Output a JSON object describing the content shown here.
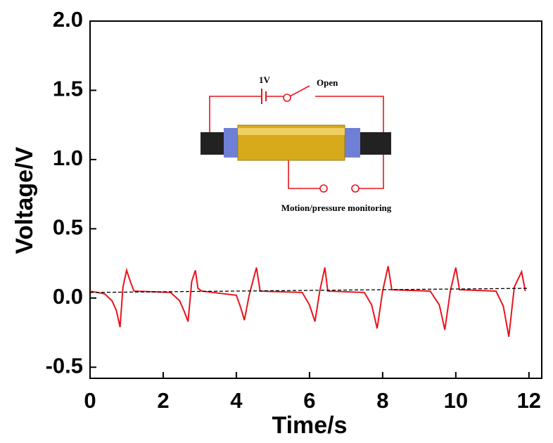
{
  "chart_data": {
    "type": "line",
    "x_label": "Time/s",
    "y_label": "Voltage/V",
    "xlim": [
      0,
      12.35
    ],
    "ylim": [
      -0.58,
      2.0
    ],
    "xticks": [
      0,
      2,
      4,
      6,
      8,
      10,
      12
    ],
    "yticks": [
      {
        "value": 2.0,
        "label": "2.0"
      },
      {
        "value": 1.5,
        "label": "1.5"
      },
      {
        "value": 1.0,
        "label": "1.0"
      },
      {
        "value": 0.5,
        "label": "0.5"
      },
      {
        "value": 0.0,
        "label": "0.0"
      },
      {
        "value": -0.5,
        "label": "-0.5"
      }
    ],
    "series": [
      {
        "color": "#e8141c",
        "x": [
          0,
          0.4,
          0.6,
          0.72,
          0.82,
          0.9,
          1.0,
          1.1,
          1.2,
          2.2,
          2.45,
          2.58,
          2.68,
          2.78,
          2.88,
          2.95,
          3.05,
          4.0,
          4.12,
          4.22,
          4.35,
          4.55,
          4.65,
          5.8,
          6.0,
          6.15,
          6.28,
          6.42,
          6.5,
          7.5,
          7.7,
          7.85,
          8.0,
          8.15,
          8.25,
          9.3,
          9.55,
          9.7,
          9.85,
          10.0,
          10.1,
          11.1,
          11.3,
          11.45,
          11.6,
          11.8,
          11.9
        ],
        "values": [
          0.05,
          0.03,
          -0.02,
          -0.09,
          -0.21,
          0.08,
          0.2,
          0.12,
          0.05,
          0.04,
          -0.02,
          -0.1,
          -0.17,
          0.12,
          0.2,
          0.07,
          0.05,
          0.02,
          -0.07,
          -0.16,
          0.02,
          0.22,
          0.05,
          0.04,
          -0.05,
          -0.17,
          0.05,
          0.22,
          0.05,
          0.04,
          -0.05,
          -0.22,
          0.05,
          0.23,
          0.06,
          0.05,
          -0.05,
          -0.23,
          0.05,
          0.22,
          0.06,
          0.05,
          -0.06,
          -0.28,
          0.08,
          0.19,
          0.05
        ]
      },
      {
        "color": "#000000",
        "dash": "5,3",
        "x": [
          0,
          12
        ],
        "values": [
          0.04,
          0.07
        ]
      }
    ],
    "inset": {
      "battery": "1V",
      "switch": "Open",
      "sensor": "Motion/pressure monitoring"
    }
  }
}
